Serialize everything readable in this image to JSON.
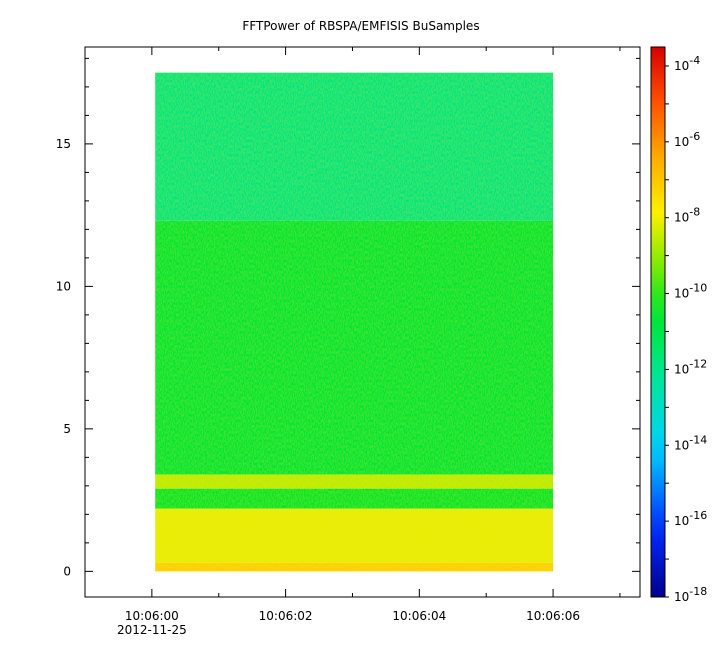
{
  "chart_data": {
    "type": "heatmap",
    "title": "FFTPower of RBSPA/EMFISIS  BuSamples",
    "xlabel": "",
    "ylabel": "",
    "x": {
      "ticks": [
        {
          "label": "10:06:00",
          "sublabel": "2012-11-25",
          "value": 0
        },
        {
          "label": "10:06:02",
          "value": 2
        },
        {
          "label": "10:06:04",
          "value": 4
        },
        {
          "label": "10:06:06",
          "value": 6
        }
      ],
      "range_seconds": [
        -1.0,
        7.3
      ],
      "data_range_seconds": [
        0.05,
        6.0
      ]
    },
    "y": {
      "ticks": [
        {
          "label": "0",
          "value": 0
        },
        {
          "label": "5",
          "value": 5
        },
        {
          "label": "10",
          "value": 10
        },
        {
          "label": "15",
          "value": 15
        }
      ],
      "range": [
        -0.9,
        18.4
      ],
      "data_range": [
        0,
        17.5
      ]
    },
    "colorbar": {
      "scale": "log",
      "range_exponent": [
        -18,
        -3.5
      ],
      "colormap": "rainbow",
      "ticks": [
        {
          "base": "10",
          "exp": "-4",
          "value_exp": -4
        },
        {
          "base": "10",
          "exp": "-6",
          "value_exp": -6
        },
        {
          "base": "10",
          "exp": "-8",
          "value_exp": -8
        },
        {
          "base": "10",
          "exp": "-10",
          "value_exp": -10
        },
        {
          "base": "10",
          "exp": "-12",
          "value_exp": -12
        },
        {
          "base": "10",
          "exp": "-14",
          "value_exp": -14
        },
        {
          "base": "10",
          "exp": "-16",
          "value_exp": -16
        },
        {
          "base": "10",
          "exp": "-18",
          "value_exp": -18
        }
      ]
    },
    "bands": [
      {
        "y": [
          12.3,
          17.5
        ],
        "log_power": -11.8
      },
      {
        "y": [
          3.4,
          12.3
        ],
        "log_power": -10.6
      },
      {
        "y": [
          2.9,
          3.4
        ],
        "log_power": -8.6
      },
      {
        "y": [
          2.2,
          2.9
        ],
        "log_power": -10.4
      },
      {
        "y": [
          0.3,
          2.2
        ],
        "log_power": -8.1
      },
      {
        "y": [
          0,
          0.3
        ],
        "log_power": -7.2
      }
    ],
    "grid": false
  }
}
